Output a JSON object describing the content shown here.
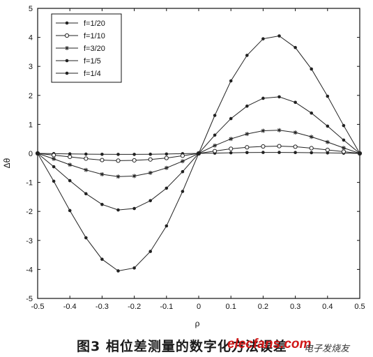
{
  "chart_data": {
    "type": "line",
    "xlabel": "ρ",
    "ylabel": "Δθ",
    "xlim": [
      -0.5,
      0.5
    ],
    "ylim": [
      -5,
      5
    ],
    "xticks": [
      "-0.5",
      "-0.4",
      "-0.3",
      "-0.2",
      "-0.1",
      "0",
      "0.1",
      "0.2",
      "0.3",
      "0.4",
      "0.5"
    ],
    "yticks": [
      "-5",
      "-4",
      "-3",
      "-2",
      "-1",
      "0",
      "1",
      "2",
      "3",
      "4",
      "5"
    ],
    "legend_position": "top-left",
    "grid": false,
    "series": [
      {
        "name": "f=1/20",
        "marker": "dot",
        "x": [
          -0.5,
          -0.45,
          -0.4,
          -0.35,
          -0.3,
          -0.25,
          -0.2,
          -0.15,
          -0.1,
          -0.05,
          0,
          0.05,
          0.1,
          0.15,
          0.2,
          0.25,
          0.3,
          0.35,
          0.4,
          0.45,
          0.5
        ],
        "y": [
          0,
          -0.008,
          -0.017,
          -0.025,
          -0.031,
          -0.034,
          -0.034,
          -0.029,
          -0.021,
          -0.01,
          0,
          0.01,
          0.021,
          0.029,
          0.034,
          0.034,
          0.031,
          0.025,
          0.017,
          0.008,
          0
        ]
      },
      {
        "name": "f=1/10",
        "marker": "circle",
        "x": [
          -0.5,
          -0.45,
          -0.4,
          -0.35,
          -0.3,
          -0.25,
          -0.2,
          -0.15,
          -0.1,
          -0.05,
          0,
          0.05,
          0.1,
          0.15,
          0.2,
          0.25,
          0.3,
          0.35,
          0.4,
          0.45,
          0.5
        ],
        "y": [
          0,
          -0.06,
          -0.12,
          -0.18,
          -0.23,
          -0.25,
          -0.24,
          -0.21,
          -0.16,
          -0.08,
          0,
          0.08,
          0.16,
          0.21,
          0.24,
          0.25,
          0.23,
          0.18,
          0.12,
          0.06,
          0
        ]
      },
      {
        "name": "f=3/20",
        "marker": "star",
        "x": [
          -0.5,
          -0.45,
          -0.4,
          -0.35,
          -0.3,
          -0.25,
          -0.2,
          -0.15,
          -0.1,
          -0.05,
          0,
          0.05,
          0.1,
          0.15,
          0.2,
          0.25,
          0.3,
          0.35,
          0.4,
          0.45,
          0.5
        ],
        "y": [
          0,
          -0.19,
          -0.39,
          -0.57,
          -0.72,
          -0.8,
          -0.78,
          -0.67,
          -0.5,
          -0.27,
          0,
          0.27,
          0.5,
          0.67,
          0.78,
          0.8,
          0.72,
          0.57,
          0.39,
          0.19,
          0
        ]
      },
      {
        "name": "f=1/5",
        "marker": "dot",
        "x": [
          -0.5,
          -0.45,
          -0.4,
          -0.35,
          -0.3,
          -0.25,
          -0.2,
          -0.15,
          -0.1,
          -0.05,
          0,
          0.05,
          0.1,
          0.15,
          0.2,
          0.25,
          0.3,
          0.35,
          0.4,
          0.45,
          0.5
        ],
        "y": [
          0,
          -0.46,
          -0.94,
          -1.39,
          -1.76,
          -1.95,
          -1.9,
          -1.63,
          -1.2,
          -0.63,
          0,
          0.63,
          1.2,
          1.63,
          1.9,
          1.95,
          1.76,
          1.39,
          0.94,
          0.46,
          0
        ]
      },
      {
        "name": "f=1/4",
        "marker": "dot",
        "x": [
          -0.5,
          -0.45,
          -0.4,
          -0.35,
          -0.3,
          -0.25,
          -0.2,
          -0.15,
          -0.1,
          -0.05,
          0,
          0.05,
          0.1,
          0.15,
          0.2,
          0.25,
          0.3,
          0.35,
          0.4,
          0.45,
          0.5
        ],
        "y": [
          0,
          -0.96,
          -1.97,
          -2.91,
          -3.65,
          -4.05,
          -3.95,
          -3.38,
          -2.5,
          -1.31,
          0,
          1.31,
          2.5,
          3.38,
          3.95,
          4.05,
          3.65,
          2.91,
          1.97,
          0.96,
          0
        ]
      }
    ]
  },
  "caption": {
    "text": "图3 相位差测量的数字化方法误差",
    "watermark_logo": "elecfans.com",
    "watermark_text": "电子发烧友"
  }
}
